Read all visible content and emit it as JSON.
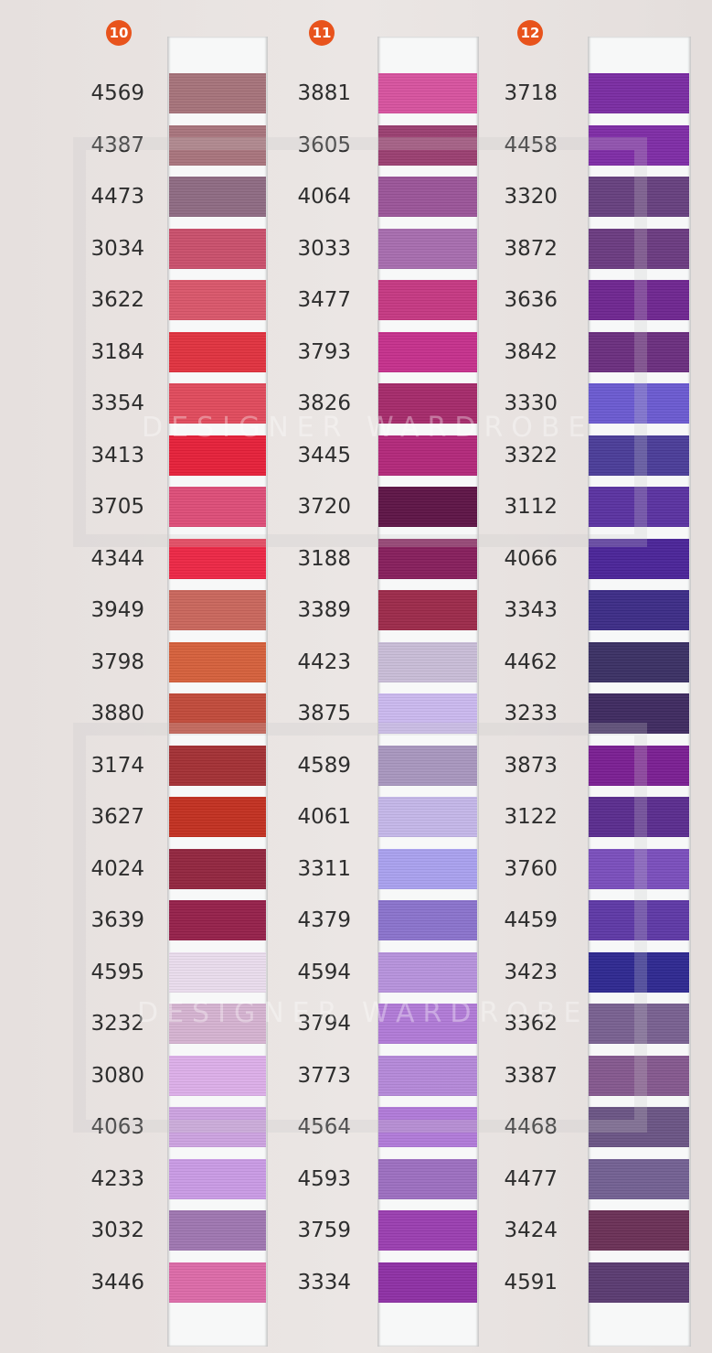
{
  "watermark": "DESIGNER WARDROBE",
  "badge_color": "#e8531c",
  "columns": [
    {
      "badge": "10",
      "shades": [
        {
          "code": "4569",
          "color": "#a6727a"
        },
        {
          "code": "4387",
          "color": "#a8747c"
        },
        {
          "code": "4473",
          "color": "#8e6a82"
        },
        {
          "code": "3034",
          "color": "#c94f6b"
        },
        {
          "code": "3622",
          "color": "#d9566a"
        },
        {
          "code": "3184",
          "color": "#e0323f"
        },
        {
          "code": "3354",
          "color": "#e04a5c"
        },
        {
          "code": "3413",
          "color": "#e52039"
        },
        {
          "code": "3705",
          "color": "#dd4d78"
        },
        {
          "code": "4344",
          "color": "#ec2745"
        },
        {
          "code": "3949",
          "color": "#c9665c"
        },
        {
          "code": "3798",
          "color": "#d5603b"
        },
        {
          "code": "3880",
          "color": "#c14a3a"
        },
        {
          "code": "3174",
          "color": "#a33034"
        },
        {
          "code": "3627",
          "color": "#c23020"
        },
        {
          "code": "4024",
          "color": "#92253f"
        },
        {
          "code": "3639",
          "color": "#95204a"
        },
        {
          "code": "4595",
          "color": "#e9dcec"
        },
        {
          "code": "3232",
          "color": "#d4b2d0"
        },
        {
          "code": "3080",
          "color": "#dcaee8"
        },
        {
          "code": "4063",
          "color": "#cca2e0"
        },
        {
          "code": "4233",
          "color": "#c99ae4"
        },
        {
          "code": "3032",
          "color": "#9e76b0"
        },
        {
          "code": "3446",
          "color": "#dc6aa8"
        }
      ]
    },
    {
      "badge": "11",
      "shades": [
        {
          "code": "3881",
          "color": "#d6529e"
        },
        {
          "code": "3605",
          "color": "#9a3f70"
        },
        {
          "code": "4064",
          "color": "#9a5498"
        },
        {
          "code": "3033",
          "color": "#a76cae"
        },
        {
          "code": "3477",
          "color": "#c53882"
        },
        {
          "code": "3793",
          "color": "#c5308c"
        },
        {
          "code": "3826",
          "color": "#a52a6a"
        },
        {
          "code": "3445",
          "color": "#b2287a"
        },
        {
          "code": "3720",
          "color": "#5e1446"
        },
        {
          "code": "3188",
          "color": "#861e5c"
        },
        {
          "code": "3389",
          "color": "#9c2a4a"
        },
        {
          "code": "4423",
          "color": "#c8bcd6"
        },
        {
          "code": "3875",
          "color": "#cab8ee"
        },
        {
          "code": "4589",
          "color": "#a896be"
        },
        {
          "code": "4061",
          "color": "#c4b6e8"
        },
        {
          "code": "3311",
          "color": "#a9a0ee"
        },
        {
          "code": "4379",
          "color": "#8a72cc"
        },
        {
          "code": "4594",
          "color": "#b692dc"
        },
        {
          "code": "3794",
          "color": "#b07ad6"
        },
        {
          "code": "3773",
          "color": "#b488d8"
        },
        {
          "code": "4564",
          "color": "#b07ad8"
        },
        {
          "code": "4593",
          "color": "#9c6ec0"
        },
        {
          "code": "3759",
          "color": "#9a3eb0"
        },
        {
          "code": "3334",
          "color": "#8e30a4"
        }
      ]
    },
    {
      "badge": "12",
      "shades": [
        {
          "code": "3718",
          "color": "#7a2ca2"
        },
        {
          "code": "4458",
          "color": "#7e2ca6"
        },
        {
          "code": "3320",
          "color": "#66407e"
        },
        {
          "code": "3872",
          "color": "#6a3a80"
        },
        {
          "code": "3636",
          "color": "#6e2690"
        },
        {
          "code": "3842",
          "color": "#6a2e7e"
        },
        {
          "code": "3330",
          "color": "#6a5ad0"
        },
        {
          "code": "3322",
          "color": "#4a3c98"
        },
        {
          "code": "3112",
          "color": "#5a32a0"
        },
        {
          "code": "4066",
          "color": "#4a2498"
        },
        {
          "code": "3343",
          "color": "#3c2c86"
        },
        {
          "code": "4462",
          "color": "#3a3064"
        },
        {
          "code": "3233",
          "color": "#3e2a60"
        },
        {
          "code": "3873",
          "color": "#7a1e92"
        },
        {
          "code": "3122",
          "color": "#5a2c8e"
        },
        {
          "code": "3760",
          "color": "#7a4ebc"
        },
        {
          "code": "4459",
          "color": "#5e38a6"
        },
        {
          "code": "3423",
          "color": "#2e2890"
        },
        {
          "code": "3362",
          "color": "#786090"
        },
        {
          "code": "3387",
          "color": "#84588e"
        },
        {
          "code": "4468",
          "color": "#6a5484"
        },
        {
          "code": "4477",
          "color": "#726092"
        },
        {
          "code": "3424",
          "color": "#6a3056"
        },
        {
          "code": "4591",
          "color": "#5a3a70"
        }
      ]
    }
  ]
}
